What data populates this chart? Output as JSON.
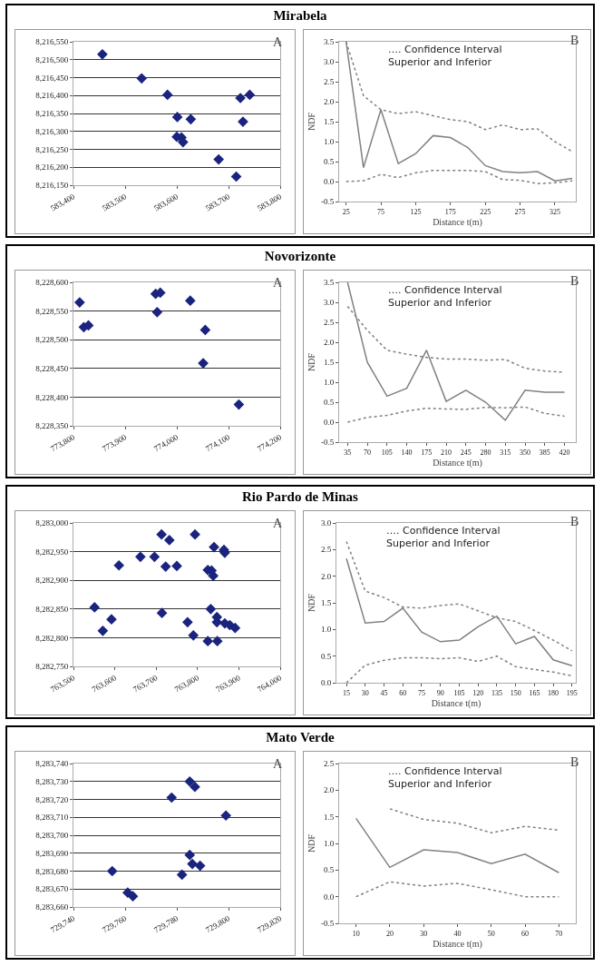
{
  "chart_data": [
    {
      "type": "scatter",
      "title": "Mirabela",
      "annotations": [
        "A"
      ],
      "marker": "diamond",
      "grid": "y",
      "xlim": [
        583400,
        583800
      ],
      "xticks": [
        {
          "value": 583400,
          "label": "583,400"
        },
        {
          "value": 583500,
          "label": "583,500"
        },
        {
          "value": 583600,
          "label": "583,600"
        },
        {
          "value": 583700,
          "label": "583,700"
        },
        {
          "value": 583800,
          "label": "583,800"
        }
      ],
      "ylim": [
        8216150,
        8216550
      ],
      "yticks": [
        {
          "value": 8216150,
          "label": "8,216,150"
        },
        {
          "value": 8216200,
          "label": "8,216,200"
        },
        {
          "value": 8216250,
          "label": "8,216,250"
        },
        {
          "value": 8216300,
          "label": "8,216,300"
        },
        {
          "value": 8216350,
          "label": "8,216,350"
        },
        {
          "value": 8216400,
          "label": "8,216,400"
        },
        {
          "value": 8216450,
          "label": "8,216,450"
        },
        {
          "value": 8216500,
          "label": "8,216,500"
        },
        {
          "value": 8216550,
          "label": "8,216,550"
        }
      ],
      "x": [
        583456,
        583532,
        583582,
        583601,
        583627,
        583600,
        583609,
        583612,
        583681,
        583715,
        583723,
        583728,
        583741
      ],
      "series": [
        {
          "color": "#1a237e",
          "values": [
            8216515,
            8216448,
            8216402,
            8216340,
            8216334,
            8216285,
            8216283,
            8216270,
            8216222,
            8216174,
            8216393,
            8216327,
            8216402
          ]
        }
      ]
    },
    {
      "type": "line",
      "xlabel": "Distance t(m)",
      "ylabel": "NDF",
      "annotations": [
        "B",
        "…. Confidence Interval\nSuperior and Inferior"
      ],
      "marker": "none",
      "xlim": [
        15,
        355
      ],
      "xticks": [
        25,
        75,
        125,
        175,
        225,
        275,
        325
      ],
      "ylim": [
        -0.5,
        3.5
      ],
      "yticks": [
        {
          "value": -0.5,
          "label": "-0.5"
        },
        {
          "value": 0,
          "label": "0.0"
        },
        {
          "value": 0.5,
          "label": "0.5"
        },
        {
          "value": 1,
          "label": "1.0"
        },
        {
          "value": 1.5,
          "label": "1.5"
        },
        {
          "value": 2,
          "label": "2.0"
        },
        {
          "value": 2.5,
          "label": "2.5"
        },
        {
          "value": 3,
          "label": "3.0"
        },
        {
          "value": 3.5,
          "label": "3.5"
        }
      ],
      "x": [
        25,
        50,
        75,
        100,
        125,
        150,
        175,
        200,
        225,
        250,
        275,
        300,
        325,
        350
      ],
      "series": [
        {
          "color": "#808080",
          "line_style": "solid",
          "values": [
            3.5,
            0.35,
            1.8,
            0.45,
            0.7,
            1.15,
            1.1,
            0.85,
            0.4,
            0.25,
            0.22,
            0.25,
            0.02,
            0.08
          ]
        },
        {
          "color": "#808080",
          "line_style": "dotted",
          "values": [
            3.5,
            2.15,
            1.8,
            1.7,
            1.75,
            1.65,
            1.55,
            1.5,
            1.3,
            1.42,
            1.3,
            1.32,
            1.0,
            0.75
          ]
        },
        {
          "color": "#808080",
          "line_style": "dotted",
          "values": [
            0,
            0.02,
            0.18,
            0.1,
            0.22,
            0.28,
            0.28,
            0.28,
            0.25,
            0.05,
            0.03,
            -0.05,
            -0.03,
            0.02
          ]
        }
      ]
    },
    {
      "type": "scatter",
      "title": "Novorizonte",
      "annotations": [
        "A"
      ],
      "marker": "diamond",
      "grid": "y",
      "xlim": [
        773800,
        774200
      ],
      "xticks": [
        {
          "value": 773800,
          "label": "773,800"
        },
        {
          "value": 773900,
          "label": "773,900"
        },
        {
          "value": 774000,
          "label": "774,000"
        },
        {
          "value": 774100,
          "label": "774,100"
        },
        {
          "value": 774200,
          "label": "774,200"
        }
      ],
      "ylim": [
        8228350,
        8228600
      ],
      "yticks": [
        {
          "value": 8228350,
          "label": "8,228,350"
        },
        {
          "value": 8228400,
          "label": "8,228,400"
        },
        {
          "value": 8228450,
          "label": "8,228,450"
        },
        {
          "value": 8228500,
          "label": "8,228,500"
        },
        {
          "value": 8228550,
          "label": "8,228,550"
        },
        {
          "value": 8228600,
          "label": "8,228,600"
        }
      ],
      "x": [
        773812,
        773820,
        773829,
        773959,
        773968,
        773962,
        774026,
        774055,
        774051,
        774120
      ],
      "series": [
        {
          "color": "#1a237e",
          "values": [
            8228565,
            8228522,
            8228525,
            8228580,
            8228582,
            8228548,
            8228568,
            8228517,
            8228459,
            8228387
          ]
        }
      ]
    },
    {
      "type": "line",
      "xlabel": "Distance t(m)",
      "ylabel": "NDF",
      "annotations": [
        "B",
        "…. Confidence Interval\nSuperior and Inferior"
      ],
      "marker": "none",
      "xlim": [
        20,
        440
      ],
      "xticks": [
        35,
        70,
        105,
        140,
        175,
        210,
        245,
        280,
        315,
        350,
        385,
        420
      ],
      "ylim": [
        -0.5,
        3.5
      ],
      "yticks": [
        {
          "value": -0.5,
          "label": "-0.5"
        },
        {
          "value": 0,
          "label": "0.0"
        },
        {
          "value": 0.5,
          "label": "0.5"
        },
        {
          "value": 1,
          "label": "1.0"
        },
        {
          "value": 1.5,
          "label": "1.5"
        },
        {
          "value": 2,
          "label": "2.0"
        },
        {
          "value": 2.5,
          "label": "2.5"
        },
        {
          "value": 3,
          "label": "3.0"
        },
        {
          "value": 3.5,
          "label": "3.5"
        }
      ],
      "x": [
        35,
        70,
        105,
        140,
        175,
        210,
        245,
        280,
        315,
        350,
        385,
        420
      ],
      "series": [
        {
          "color": "#808080",
          "line_style": "solid",
          "values": [
            3.5,
            1.5,
            0.65,
            0.85,
            1.8,
            0.52,
            0.8,
            0.5,
            0.05,
            0.8,
            0.75,
            0.75
          ]
        },
        {
          "color": "#808080",
          "line_style": "dotted",
          "values": [
            2.9,
            2.3,
            1.8,
            1.7,
            1.62,
            1.58,
            1.58,
            1.55,
            1.57,
            1.35,
            1.28,
            1.25
          ]
        },
        {
          "color": "#808080",
          "line_style": "dotted",
          "values": [
            0,
            0.12,
            0.17,
            0.28,
            0.35,
            0.33,
            0.32,
            0.37,
            0.36,
            0.38,
            0.22,
            0.15
          ]
        }
      ]
    },
    {
      "type": "scatter",
      "title": "Rio Pardo de Minas",
      "annotations": [
        "A"
      ],
      "marker": "diamond",
      "grid": "y",
      "xlim": [
        763500,
        764000
      ],
      "xticks": [
        {
          "value": 763500,
          "label": "763,500"
        },
        {
          "value": 763600,
          "label": "763,600"
        },
        {
          "value": 763700,
          "label": "763,700"
        },
        {
          "value": 763800,
          "label": "763,800"
        },
        {
          "value": 763900,
          "label": "763,900"
        },
        {
          "value": 764000,
          "label": "764,000"
        }
      ],
      "ylim": [
        8282750,
        8283000
      ],
      "yticks": [
        {
          "value": 8282750,
          "label": "8,282,750"
        },
        {
          "value": 8282800,
          "label": "8,282,800"
        },
        {
          "value": 8282850,
          "label": "8,282,850"
        },
        {
          "value": 8282900,
          "label": "8,282,900"
        },
        {
          "value": 8282950,
          "label": "8,282,950"
        },
        {
          "value": 8283000,
          "label": "8,283,000"
        }
      ],
      "x": [
        763551,
        763571,
        763592,
        763610,
        763662,
        763696,
        763713,
        763732,
        763723,
        763750,
        763714,
        763776,
        763794,
        763790,
        763825,
        763848,
        763832,
        763825,
        763834,
        763838,
        763840,
        763864,
        763866,
        763847,
        763847,
        763866,
        763878,
        763891
      ],
      "series": [
        {
          "color": "#1a237e",
          "values": [
            8282853,
            8282812,
            8282832,
            8282926,
            8282941,
            8282941,
            8282980,
            8282970,
            8282924,
            8282925,
            8282843,
            8282827,
            8282980,
            8282804,
            8282794,
            8282794,
            8282850,
            8282918,
            8282917,
            8282908,
            8282958,
            8282953,
            8282948,
            8282836,
            8282827,
            8282825,
            8282822,
            8282817
          ]
        }
      ]
    },
    {
      "type": "line",
      "xlabel": "Distance t(m)",
      "ylabel": "NDF",
      "annotations": [
        "B",
        "…. Confidence Interval\nSuperior and Inferior"
      ],
      "marker": "none",
      "xlim": [
        7,
        198
      ],
      "xticks": [
        15,
        30,
        45,
        60,
        75,
        90,
        105,
        120,
        135,
        150,
        165,
        180,
        195
      ],
      "ylim": [
        0,
        3
      ],
      "yticks": [
        {
          "value": 0,
          "label": "0.0"
        },
        {
          "value": 0.5,
          "label": "0.5"
        },
        {
          "value": 1,
          "label": "1.0"
        },
        {
          "value": 1.5,
          "label": "1.5"
        },
        {
          "value": 2,
          "label": "2.0"
        },
        {
          "value": 2.5,
          "label": "2.5"
        },
        {
          "value": 3,
          "label": "3.0"
        }
      ],
      "x": [
        15,
        30,
        45,
        60,
        75,
        90,
        105,
        120,
        135,
        150,
        165,
        180,
        195
      ],
      "series": [
        {
          "color": "#808080",
          "line_style": "solid",
          "values": [
            2.33,
            1.12,
            1.15,
            1.4,
            0.95,
            0.77,
            0.8,
            1.05,
            1.25,
            0.73,
            0.87,
            0.43,
            0.32
          ]
        },
        {
          "color": "#808080",
          "line_style": "dotted",
          "values": [
            2.65,
            1.72,
            1.6,
            1.42,
            1.4,
            1.45,
            1.48,
            1.35,
            1.22,
            1.15,
            0.98,
            0.8,
            0.6
          ]
        },
        {
          "color": "#808080",
          "line_style": "dotted",
          "values": [
            0,
            0.33,
            0.42,
            0.47,
            0.47,
            0.45,
            0.47,
            0.4,
            0.5,
            0.3,
            0.25,
            0.2,
            0.13
          ]
        }
      ]
    },
    {
      "type": "scatter",
      "title": "Mato Verde",
      "annotations": [
        "A"
      ],
      "marker": "diamond",
      "grid": "y",
      "xlim": [
        729740,
        729820
      ],
      "xticks": [
        {
          "value": 729740,
          "label": "729,740"
        },
        {
          "value": 729760,
          "label": "729,760"
        },
        {
          "value": 729780,
          "label": "729,780"
        },
        {
          "value": 729800,
          "label": "729,800"
        },
        {
          "value": 729820,
          "label": "729,820"
        }
      ],
      "ylim": [
        8283660,
        8283740
      ],
      "yticks": [
        {
          "value": 8283660,
          "label": "8,283,660"
        },
        {
          "value": 8283670,
          "label": "8,283,670"
        },
        {
          "value": 8283680,
          "label": "8,283,680"
        },
        {
          "value": 8283690,
          "label": "8,283,690"
        },
        {
          "value": 8283700,
          "label": "8,283,700"
        },
        {
          "value": 8283710,
          "label": "8,283,710"
        },
        {
          "value": 8283720,
          "label": "8,283,720"
        },
        {
          "value": 8283730,
          "label": "8,283,730"
        },
        {
          "value": 8283740,
          "label": "8,283,740"
        }
      ],
      "x": [
        729755,
        729761,
        729763,
        729778,
        729782,
        729785,
        729787,
        729799,
        729785,
        729786,
        729789
      ],
      "series": [
        {
          "color": "#1a237e",
          "values": [
            8283680,
            8283668,
            8283666,
            8283721,
            8283678,
            8283730,
            8283727,
            8283711,
            8283689,
            8283684,
            8283683
          ]
        }
      ]
    },
    {
      "type": "line",
      "xlabel": "Distance t(m)",
      "ylabel": "NDF",
      "annotations": [
        "B",
        "…. Confidence Interval\nSuperior and Inferior"
      ],
      "marker": "none",
      "xlim": [
        5,
        75
      ],
      "xticks": [
        10,
        20,
        30,
        40,
        50,
        60,
        70
      ],
      "ylim": [
        -0.5,
        2.5
      ],
      "yticks": [
        {
          "value": -0.5,
          "label": "-0.5"
        },
        {
          "value": 0,
          "label": "0.0"
        },
        {
          "value": 0.5,
          "label": "0.5"
        },
        {
          "value": 1,
          "label": "1.0"
        },
        {
          "value": 1.5,
          "label": "1.5"
        },
        {
          "value": 2,
          "label": "2.0"
        },
        {
          "value": 2.5,
          "label": "2.5"
        }
      ],
      "x": [
        10,
        20,
        30,
        40,
        50,
        60,
        70
      ],
      "series": [
        {
          "color": "#808080",
          "line_style": "solid",
          "values": [
            1.47,
            0.55,
            0.88,
            0.83,
            0.62,
            0.8,
            0.45
          ]
        },
        {
          "color": "#808080",
          "line_style": "dotted",
          "values": [
            null,
            1.65,
            1.45,
            1.38,
            1.2,
            1.32,
            1.25
          ]
        },
        {
          "color": "#808080",
          "line_style": "dotted",
          "values": [
            0,
            0.28,
            0.2,
            0.25,
            0.13,
            0,
            0
          ]
        }
      ]
    }
  ]
}
